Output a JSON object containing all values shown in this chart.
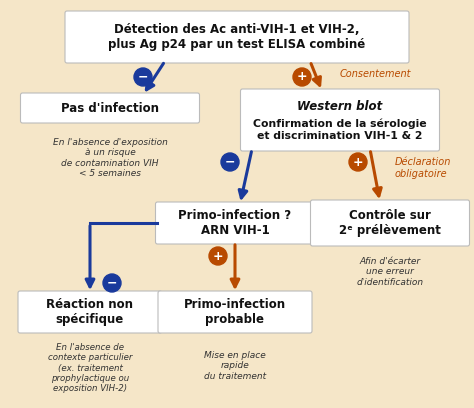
{
  "bg_color": "#F5E6C8",
  "box_bg": "#FFFFFF",
  "blue_arrow": "#1A3A9C",
  "orange_arrow": "#B84A00",
  "blue_circle": "#1A3A9C",
  "orange_circle": "#B84A00",
  "orange_text": "#B84A00",
  "dark_text": "#111111",
  "italic_color": "#333333",
  "title_text": "Détection des Ac anti-VIH-1 et VIH-2,\nplus Ag p24 par un test ELISA combiné",
  "box1_text": "Pas d'infection",
  "box1_italic": "En l'absence d'exposition\nà un risque\nde contamination VIH\n< 5 semaines",
  "box2_line1": "Western blot",
  "box2_line2": "Confirmation de la sérologie\net discrimination VIH-1 & 2",
  "box3_text": "Primo-infection ?\nARN VIH-1",
  "box4_text": "Contrôle sur\n2ᵉ prélèvement",
  "box4_italic": "Afin d'écarter\nune erreur\nd'identification",
  "box5_text": "Réaction non\nspécifique",
  "box5_italic": "En l'absence de\ncontexte particulier\n(ex. traitement\nprophylactique ou\nexposition VIH-2)",
  "box6_text": "Primo-infection\nprobable",
  "box6_italic": "Mise en place\nrapide\ndu traitement",
  "label_consentement": "Consentement",
  "label_declaration": "Déclaration\nobligatoire"
}
